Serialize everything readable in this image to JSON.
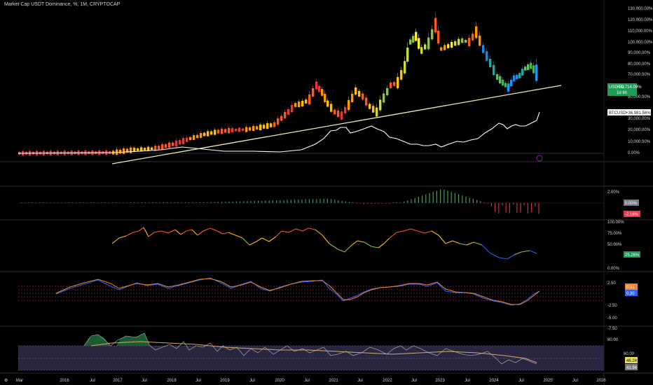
{
  "header": {
    "title": "Market Cap USDT Dominance, %, 1M, CRYPTOCAP"
  },
  "panes": {
    "main": {
      "y_ticks": [
        "130,000.00%",
        "120,000.00%",
        "110,000.00%",
        "100,000.00%",
        "90,000.00%",
        "80,000.00%",
        "70,000.00%",
        "50,000.00%",
        "30,000.00%",
        "20,000.00%",
        "10,000.00%",
        "0.00%"
      ],
      "usdt_tag": {
        "label": "USDT.D",
        "value": "+59,714.09%",
        "sub": "1d 6h",
        "color": "#1e9b55"
      },
      "btc_tag": {
        "label": "BTCUSD",
        "value": "+36,981.56%",
        "color": "#ffffff"
      }
    },
    "macd": {
      "y_ticks": [
        "2.00%",
        "-2.00%"
      ],
      "tag_zero": {
        "value": "0.00%",
        "color": "#787b86"
      },
      "tag_value": {
        "value": "-2.16%",
        "color": "#f23645"
      }
    },
    "stoch": {
      "y_ticks": [
        "100.00%",
        "75.00%",
        "50.00%",
        "0.00%"
      ],
      "tag_value": {
        "value": "25.26%",
        "color": "#1e9b55"
      }
    },
    "osc": {
      "y_ticks": [
        "2.50",
        "-2.50",
        "-5.00",
        "-7.50"
      ],
      "tag_a": {
        "value": "0.31",
        "color": "#f7822d"
      },
      "tag_b": {
        "value": "0.30",
        "color": "#2962ff"
      }
    },
    "rsi": {
      "y_ticks": [
        "80.00",
        "60.00"
      ],
      "tag_a": {
        "value": "46.24",
        "color": "#e8e05a"
      },
      "tag_b": {
        "value": "41.94",
        "color": "#787b86"
      }
    }
  },
  "time_axis": [
    "Mar",
    "2016",
    "Jul",
    "2017",
    "Jul",
    "2018",
    "Jul",
    "2019",
    "Jul",
    "2020",
    "Jul",
    "2021",
    "Jul",
    "2022",
    "Jul",
    "2023",
    "Jul",
    "2024",
    "Jul",
    "2025",
    "Jul",
    "2026"
  ],
  "colors": {
    "background": "#000000",
    "trendline": "#f5e9b0",
    "btc_line": "#ffffff",
    "rsi_band": "#2a2540"
  }
}
